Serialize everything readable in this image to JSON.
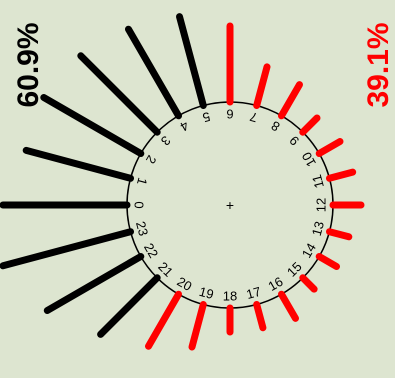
{
  "chart_data": {
    "type": "bar",
    "subtype": "radial-clock-bar",
    "categories": [
      "0",
      "1",
      "2",
      "3",
      "4",
      "5",
      "6",
      "7",
      "8",
      "9",
      "10",
      "11",
      "12",
      "13",
      "14",
      "15",
      "16",
      "17",
      "18",
      "19",
      "20",
      "21",
      "22",
      "23"
    ],
    "values": [
      31,
      27,
      28,
      27,
      25,
      23,
      19,
      10,
      9,
      5,
      6,
      6,
      7,
      5,
      5,
      4,
      7,
      6,
      6,
      11,
      15,
      20,
      27,
      33
    ],
    "value_unit": "relative bar length (unitless)",
    "series_colors": {
      "0": "#000000",
      "1": "#000000",
      "2": "#000000",
      "3": "#000000",
      "4": "#000000",
      "5": "#000000",
      "6": "#ff0000",
      "7": "#ff0000",
      "8": "#ff0000",
      "9": "#ff0000",
      "10": "#ff0000",
      "11": "#ff0000",
      "12": "#ff0000",
      "13": "#ff0000",
      "14": "#ff0000",
      "15": "#ff0000",
      "16": "#ff0000",
      "17": "#ff0000",
      "18": "#ff0000",
      "19": "#ff0000",
      "20": "#ff0000",
      "21": "#000000",
      "22": "#000000",
      "23": "#000000"
    },
    "left_percentage": "60.9%",
    "right_percentage": "39.1%",
    "left_color": "#000000",
    "right_color": "#ff0000",
    "center_mark": "+",
    "grid": false,
    "legend": "none"
  }
}
